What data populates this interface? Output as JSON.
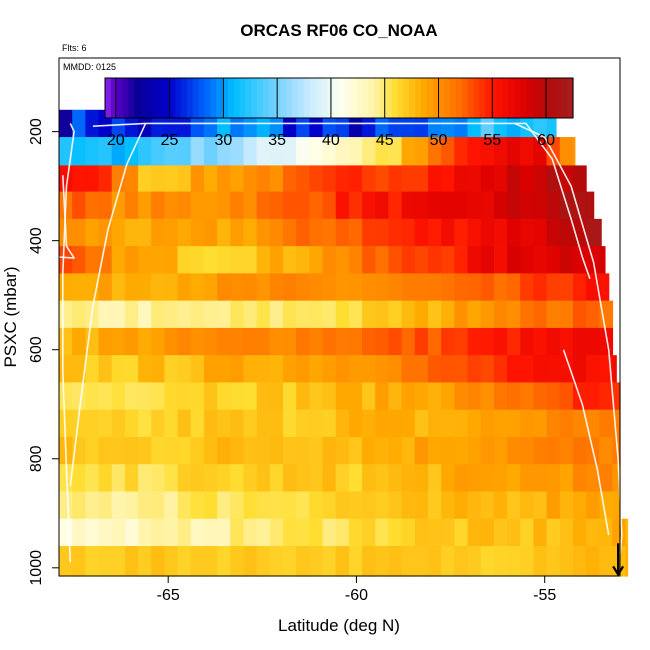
{
  "chart_data": {
    "type": "heatmap",
    "title": "ORCAS RF06 CO_NOAA",
    "subtitle": "Flts: 6",
    "annotation": "MMDD: 0125",
    "xlabel": "Latitude (deg N)",
    "ylabel": "PSXC (mbar)",
    "xlim": [
      -67.9,
      -53.0
    ],
    "ylim": [
      1015,
      65
    ],
    "y_inverted": true,
    "x_ticks": [
      -65,
      -60,
      -55
    ],
    "x_tick_labels": [
      "-65",
      "-60",
      "-55"
    ],
    "y_ticks": [
      200,
      400,
      600,
      800,
      1000
    ],
    "y_tick_labels": [
      "200",
      "400",
      "600",
      "800",
      "1000"
    ],
    "colorbar": {
      "ticks": [
        20,
        25,
        30,
        35,
        40,
        45,
        50,
        55,
        60
      ],
      "tick_labels": [
        "20",
        "25",
        "30",
        "35",
        "40",
        "45",
        "50",
        "55",
        "60"
      ],
      "range": [
        19,
        62.5
      ],
      "placement": "top-inside"
    },
    "cell_width_deg": 0.35,
    "layers": [
      {
        "p_top": 160,
        "p_bot": 210,
        "lat_end": -54.7,
        "stops": [
          [
            -68,
            24
          ],
          [
            -67,
            27
          ],
          [
            -65,
            24
          ],
          [
            -63,
            31
          ],
          [
            -61,
            25
          ],
          [
            -59,
            26
          ],
          [
            -57.5,
            27
          ],
          [
            -57,
            32
          ],
          [
            -55,
            33
          ]
        ],
        "noise": 3
      },
      {
        "p_top": 210,
        "p_bot": 262,
        "lat_end": -54.2,
        "stops": [
          [
            -68,
            31
          ],
          [
            -66,
            31.5
          ],
          [
            -65,
            34
          ],
          [
            -63,
            37
          ],
          [
            -61,
            42
          ],
          [
            -59,
            46
          ],
          [
            -57,
            55
          ],
          [
            -55,
            57
          ],
          [
            -54.5,
            50
          ]
        ],
        "noise": 1.2
      },
      {
        "p_top": 262,
        "p_bot": 310,
        "lat_end": -53.9,
        "stops": [
          [
            -68,
            57
          ],
          [
            -66.5,
            53
          ],
          [
            -65.5,
            47
          ],
          [
            -64,
            49
          ],
          [
            -62,
            51
          ],
          [
            -60,
            54
          ],
          [
            -58,
            55
          ],
          [
            -56,
            58
          ],
          [
            -54.5,
            60
          ]
        ],
        "noise": 1.2
      },
      {
        "p_top": 310,
        "p_bot": 360,
        "lat_end": -53.7,
        "stops": [
          [
            -68,
            53
          ],
          [
            -66,
            50
          ],
          [
            -64,
            50
          ],
          [
            -62,
            52
          ],
          [
            -60,
            55
          ],
          [
            -58,
            56
          ],
          [
            -56,
            58
          ],
          [
            -54,
            61
          ]
        ],
        "noise": 1.2
      },
      {
        "p_top": 360,
        "p_bot": 410,
        "lat_end": -53.5,
        "stops": [
          [
            -68,
            50
          ],
          [
            -65,
            48
          ],
          [
            -63,
            49
          ],
          [
            -61,
            52
          ],
          [
            -59,
            54
          ],
          [
            -57,
            56
          ],
          [
            -55,
            58
          ],
          [
            -54,
            61
          ]
        ],
        "noise": 1.2
      },
      {
        "p_top": 410,
        "p_bot": 460,
        "lat_end": -53.4,
        "stops": [
          [
            -68,
            53
          ],
          [
            -66,
            49
          ],
          [
            -64,
            47
          ],
          [
            -62,
            48
          ],
          [
            -60,
            51
          ],
          [
            -58,
            54
          ],
          [
            -56,
            57
          ],
          [
            -54,
            59
          ]
        ],
        "noise": 1.2
      },
      {
        "p_top": 460,
        "p_bot": 510,
        "lat_end": -53.3,
        "stops": [
          [
            -68,
            48
          ],
          [
            -65,
            49
          ],
          [
            -62,
            50
          ],
          [
            -60,
            50
          ],
          [
            -58,
            51
          ],
          [
            -56,
            52
          ],
          [
            -54,
            55
          ]
        ],
        "noise": 1
      },
      {
        "p_top": 510,
        "p_bot": 560,
        "lat_end": -53.2,
        "stops": [
          [
            -68,
            44
          ],
          [
            -65,
            44
          ],
          [
            -62,
            45
          ],
          [
            -60,
            46
          ],
          [
            -58,
            48
          ],
          [
            -56,
            51
          ],
          [
            -54,
            52
          ]
        ],
        "noise": 1
      },
      {
        "p_top": 560,
        "p_bot": 610,
        "lat_end": -53.2,
        "stops": [
          [
            -68,
            48
          ],
          [
            -66,
            49
          ],
          [
            -64,
            50
          ],
          [
            -62,
            51
          ],
          [
            -60,
            52
          ],
          [
            -58,
            53
          ],
          [
            -56,
            55
          ],
          [
            -54,
            56
          ]
        ],
        "noise": 1
      },
      {
        "p_top": 610,
        "p_bot": 660,
        "lat_end": -53.1,
        "stops": [
          [
            -68,
            47
          ],
          [
            -66,
            47
          ],
          [
            -64,
            48
          ],
          [
            -62,
            49
          ],
          [
            -60,
            50
          ],
          [
            -58,
            52
          ],
          [
            -56,
            54
          ],
          [
            -54,
            56
          ]
        ],
        "noise": 1
      },
      {
        "p_top": 660,
        "p_bot": 710,
        "lat_end": -53.0,
        "stops": [
          [
            -68,
            45
          ],
          [
            -66,
            46
          ],
          [
            -64,
            47
          ],
          [
            -62,
            47
          ],
          [
            -60,
            48
          ],
          [
            -58,
            49
          ],
          [
            -56,
            51
          ],
          [
            -54,
            54
          ]
        ],
        "noise": 1
      },
      {
        "p_top": 710,
        "p_bot": 760,
        "lat_end": -53.0,
        "stops": [
          [
            -68,
            46
          ],
          [
            -66,
            46
          ],
          [
            -64,
            47
          ],
          [
            -62,
            47
          ],
          [
            -60,
            48
          ],
          [
            -58,
            48
          ],
          [
            -56,
            49
          ],
          [
            -54,
            51
          ]
        ],
        "noise": 1
      },
      {
        "p_top": 760,
        "p_bot": 810,
        "lat_end": -53.0,
        "stops": [
          [
            -68,
            47
          ],
          [
            -65,
            47
          ],
          [
            -62,
            48
          ],
          [
            -60,
            48
          ],
          [
            -58,
            49
          ],
          [
            -56,
            50
          ],
          [
            -54,
            51
          ]
        ],
        "noise": 1
      },
      {
        "p_top": 810,
        "p_bot": 860,
        "lat_end": -53.0,
        "stops": [
          [
            -68,
            45
          ],
          [
            -65,
            46
          ],
          [
            -62,
            47
          ],
          [
            -60,
            47
          ],
          [
            -58,
            48
          ],
          [
            -56,
            49
          ],
          [
            -54,
            50
          ]
        ],
        "noise": 1
      },
      {
        "p_top": 860,
        "p_bot": 910,
        "lat_end": -53.0,
        "stops": [
          [
            -68,
            44
          ],
          [
            -65,
            45
          ],
          [
            -62,
            46
          ],
          [
            -60,
            47
          ],
          [
            -58,
            47
          ],
          [
            -56,
            48
          ],
          [
            -54,
            49
          ]
        ],
        "noise": 1
      },
      {
        "p_top": 910,
        "p_bot": 960,
        "lat_end": -52.8,
        "stops": [
          [
            -68,
            42
          ],
          [
            -66,
            43
          ],
          [
            -64,
            44
          ],
          [
            -62,
            45
          ],
          [
            -60,
            46
          ],
          [
            -58,
            47
          ],
          [
            -56,
            47
          ],
          [
            -54,
            48
          ]
        ],
        "noise": 1
      },
      {
        "p_top": 960,
        "p_bot": 1015,
        "lat_end": -52.8,
        "stops": [
          [
            -68,
            47
          ],
          [
            -64,
            47
          ],
          [
            -60,
            47
          ],
          [
            -56,
            47
          ],
          [
            -54,
            48
          ]
        ],
        "noise": 0.6
      }
    ],
    "flight_track": [
      [
        [
          -67.6,
          990
        ],
        [
          -67.7,
          820
        ],
        [
          -67.8,
          640
        ],
        [
          -67.8,
          460
        ],
        [
          -67.7,
          300
        ],
        [
          -67.5,
          200
        ],
        [
          -67.6,
          185
        ]
      ],
      [
        [
          -67.9,
          430
        ],
        [
          -67.5,
          432
        ],
        [
          -67.7,
          410
        ],
        [
          -67.8,
          280
        ]
      ],
      [
        [
          -67.0,
          190
        ],
        [
          -65.6,
          185
        ],
        [
          -63,
          185
        ],
        [
          -60,
          185
        ],
        [
          -57,
          185
        ],
        [
          -55.5,
          185
        ],
        [
          -54.8,
          250
        ],
        [
          -54.3,
          360
        ],
        [
          -54.0,
          430
        ],
        [
          -53.8,
          470
        ]
      ],
      [
        [
          -55.8,
          185
        ],
        [
          -55.0,
          210
        ],
        [
          -54.3,
          300
        ],
        [
          -53.7,
          440
        ],
        [
          -53.3,
          600
        ],
        [
          -53.05,
          800
        ],
        [
          -52.95,
          940
        ],
        [
          -53.0,
          975
        ]
      ],
      [
        [
          -65.6,
          185
        ],
        [
          -66.1,
          260
        ],
        [
          -66.6,
          380
        ],
        [
          -67.0,
          520
        ],
        [
          -67.3,
          680
        ],
        [
          -67.6,
          850
        ]
      ],
      [
        [
          -54.5,
          600
        ],
        [
          -54.0,
          700
        ],
        [
          -53.6,
          820
        ],
        [
          -53.3,
          940
        ]
      ]
    ],
    "end_arrow": {
      "lat": -53.05,
      "p_from": 955,
      "p_to": 1012
    }
  }
}
